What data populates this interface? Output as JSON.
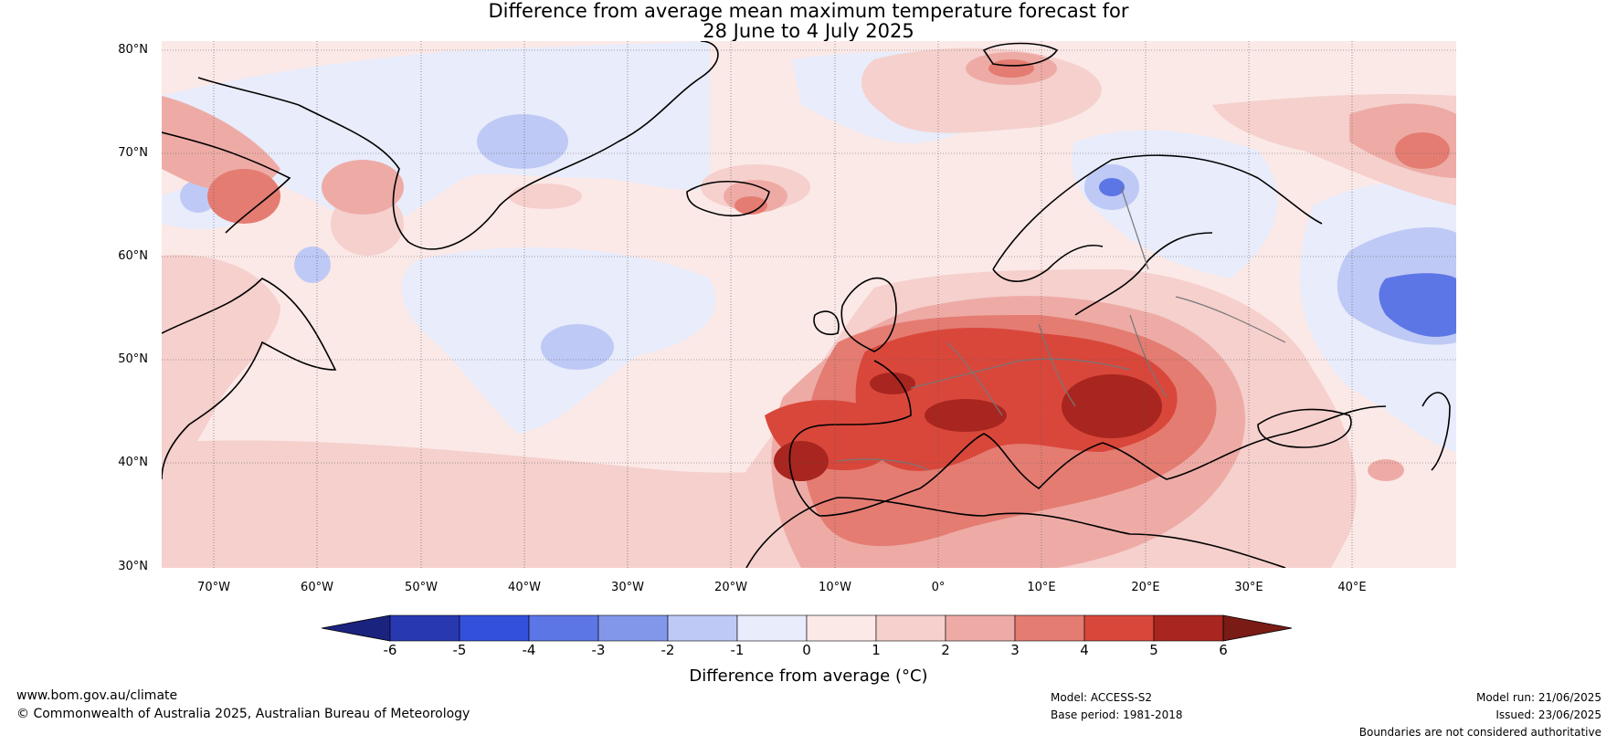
{
  "title_line1": "Difference from average mean maximum temperature forecast for",
  "title_line2": "28 June to 4 July 2025",
  "lat_labels": [
    "80°N",
    "70°N",
    "60°N",
    "50°N",
    "40°N",
    "30°N"
  ],
  "lon_labels": [
    "70°W",
    "60°W",
    "50°W",
    "40°W",
    "30°W",
    "20°W",
    "10°W",
    "0°",
    "10°E",
    "20°E",
    "30°E",
    "40°E"
  ],
  "colorbar": {
    "label": "Difference from average (°C)",
    "ticks": [
      "-6",
      "-5",
      "-4",
      "-3",
      "-2",
      "-1",
      "0",
      "1",
      "2",
      "3",
      "4",
      "5",
      "6"
    ],
    "colors": [
      "#1a237e",
      "#2838b0",
      "#3350dc",
      "#5c76e6",
      "#8397ea",
      "#bfc9f5",
      "#e8ecfb",
      "#fbe9e7",
      "#f5d0cd",
      "#eeaba6",
      "#e47c72",
      "#d9473b",
      "#a8261f",
      "#7a1b15"
    ]
  },
  "footer": {
    "website": "www.bom.gov.au/climate",
    "copyright": "© Commonwealth of Australia 2025, Australian Bureau of Meteorology",
    "model": "Model: ACCESS-S2",
    "base_period": "Base period: 1981-2018",
    "model_run": "Model run: 21/06/2025",
    "issued": "Issued: 23/06/2025",
    "disclaimer": "Boundaries are not considered authoritative"
  }
}
